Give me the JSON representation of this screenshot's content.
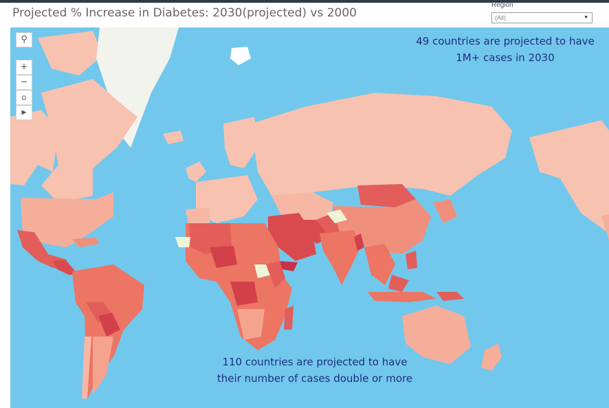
{
  "title": "Projected % Increase in Diabetes: 2030(projected) vs 2000",
  "filter": {
    "label": "Region",
    "value": "(All)"
  },
  "map_controls": {
    "search_icon": "search-icon",
    "zoom_in_icon": "plus-icon",
    "zoom_out_icon": "minus-icon",
    "home_icon": "home-icon",
    "expand_icon": "play-icon"
  },
  "annotations": {
    "top_line1": "49 countries are projected to have",
    "top_line2": "1M+ cases in 2030",
    "bottom_line1": "110 countries are projected to have",
    "bottom_line2": "their number of cases double or more"
  },
  "colors": {
    "ocean": "#72c8ec",
    "low": "#f7c2b0",
    "mid": "#f0907c",
    "high": "#e35d5a",
    "very_high": "#c9304a",
    "no_data": "#eef5d6"
  }
}
